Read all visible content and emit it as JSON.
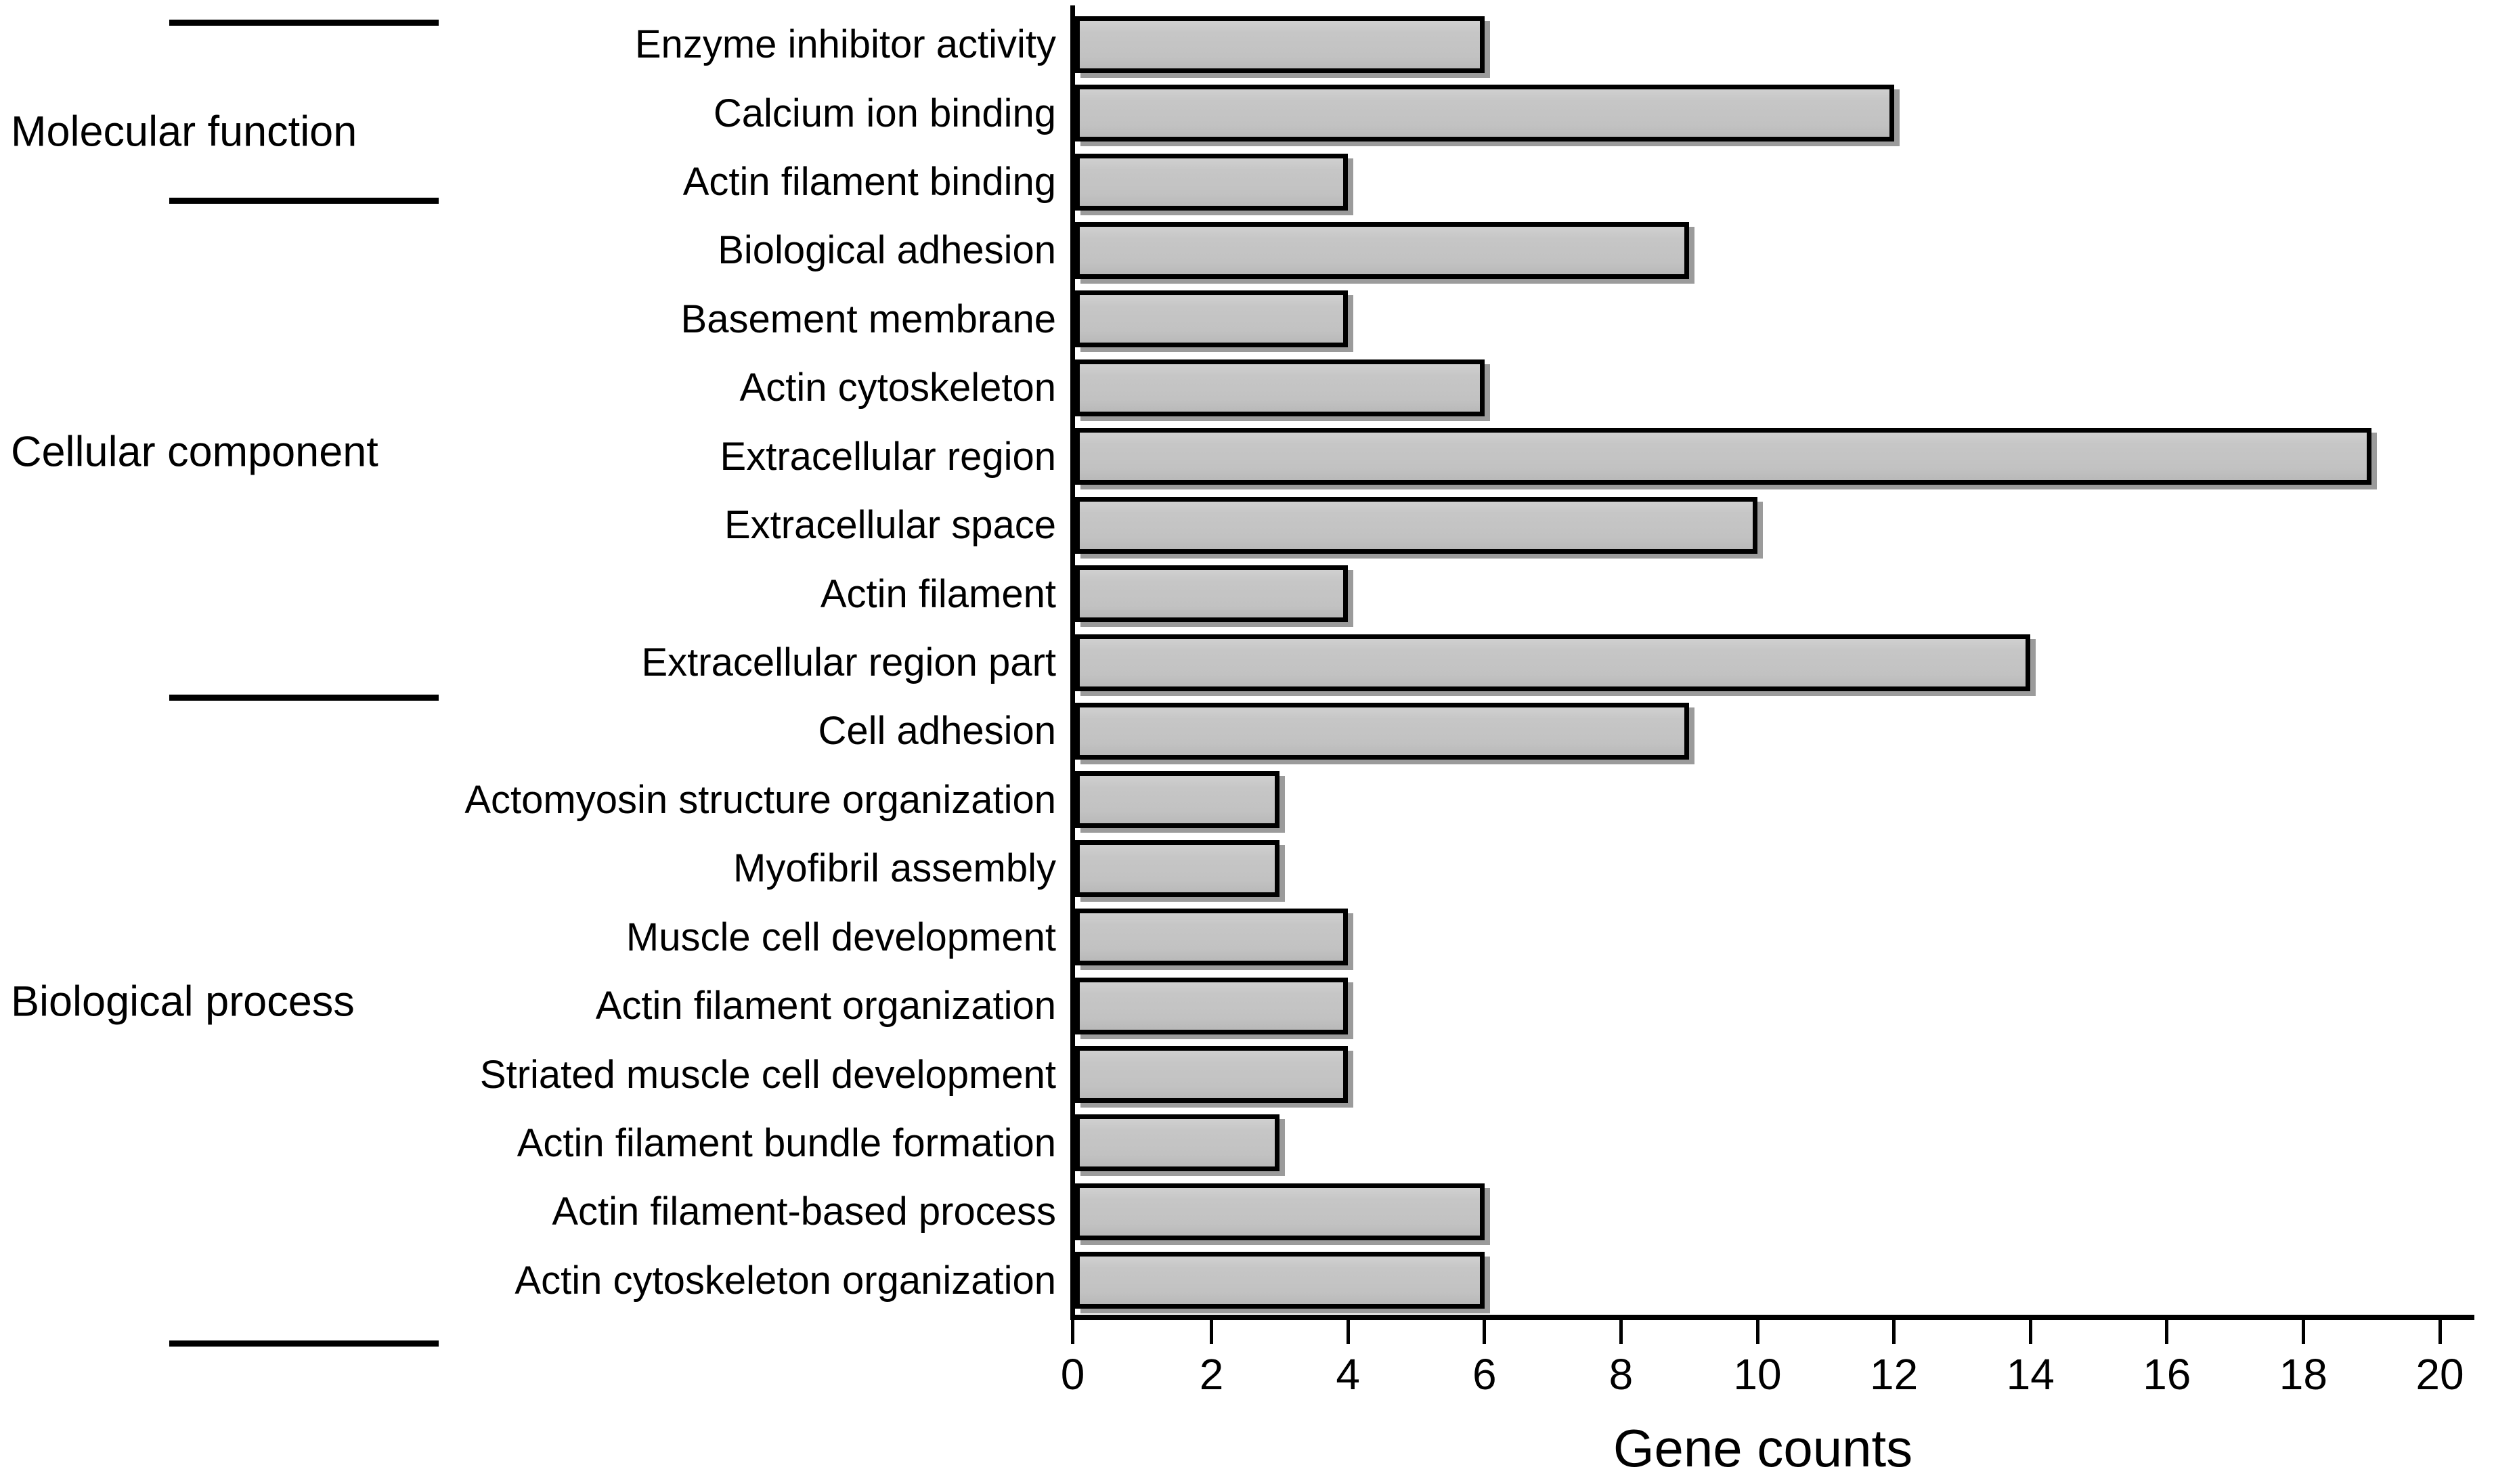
{
  "figure": {
    "background_color": "#ffffff",
    "text_color": "#000000",
    "axis_color": "#000000"
  },
  "chart_data": {
    "type": "bar",
    "orientation": "horizontal",
    "title": "",
    "xlabel": "Gene counts",
    "ylabel": "",
    "xlim": [
      0,
      20
    ],
    "xticks": [
      0,
      2,
      4,
      6,
      8,
      10,
      12,
      14,
      16,
      18,
      20
    ],
    "grid": false,
    "legend": false,
    "bar_fill_color": "#c4c4c4",
    "bar_border_color": "#000000",
    "bar_shadow_color": "#9b9b9b",
    "categories": [
      "Enzyme inhibitor activity",
      "Calcium ion binding",
      "Actin filament binding",
      "Biological adhesion",
      "Basement membrane",
      "Actin cytoskeleton",
      "Extracellular region",
      "Extracellular space",
      "Actin filament",
      "Extracellular region part",
      "Cell adhesion",
      "Actomyosin structure organization",
      "Myofibril assembly",
      "Muscle cell development",
      "Actin filament organization",
      "Striated muscle cell development",
      "Actin filament bundle formation",
      "Actin filament-based process",
      "Actin cytoskeleton organization"
    ],
    "values": [
      6,
      12,
      4,
      9,
      4,
      6,
      19,
      10,
      4,
      14,
      9,
      3,
      3,
      4,
      4,
      4,
      3,
      6,
      6
    ],
    "groups": [
      {
        "label": "Molecular function",
        "start": 0,
        "end": 2
      },
      {
        "label": "Cellular component",
        "start": 3,
        "end": 9
      },
      {
        "label": "Biological process",
        "start": 10,
        "end": 18
      }
    ]
  }
}
